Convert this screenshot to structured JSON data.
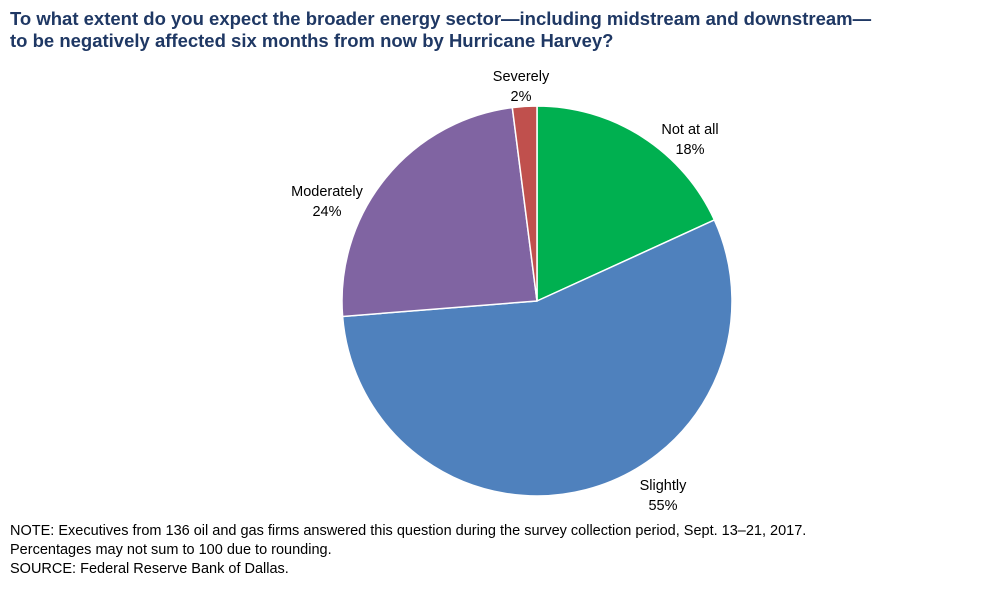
{
  "chart_data": {
    "type": "pie",
    "title": "To what extent do you expect the broader energy sector—including midstream and downstream—to be negatively affected six months from now by Hurricane Harvey?",
    "title_lines": [
      "To what extent do you expect the broader energy sector—including midstream and downstream—",
      "to be negatively affected six months from now by Hurricane Harvey?"
    ],
    "slices": [
      {
        "label": "Not at all",
        "value": 18,
        "value_label": "18%",
        "color": "#00b050"
      },
      {
        "label": "Slightly",
        "value": 55,
        "value_label": "55%",
        "color": "#4f81bd"
      },
      {
        "label": "Moderately",
        "value": 24,
        "value_label": "24%",
        "color": "#8064a2"
      },
      {
        "label": "Severely",
        "value": 2,
        "value_label": "2%",
        "color": "#c0504d"
      }
    ],
    "start": "12 o'clock",
    "direction": "clockwise",
    "legend": "none"
  },
  "notes": {
    "line1": "NOTE:  Executives  from  136  oil  and  gas  firms  answered  this  question  during  the  survey  collection  period,  Sept.  13–21,  2017.",
    "line2": "Percentages  may  not  sum  to  100  due  to  rounding.",
    "line3": "SOURCE:  Federal  Reserve  Bank  of  Dallas."
  }
}
